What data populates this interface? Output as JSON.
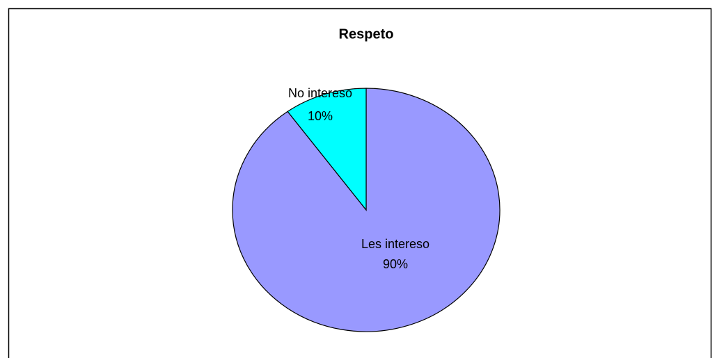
{
  "chart_data": {
    "type": "pie",
    "title": "Respeto",
    "categories": [
      "Les intereso",
      "No intereso"
    ],
    "values": [
      90,
      10
    ],
    "value_labels": [
      "90%",
      "10%"
    ],
    "colors": [
      "#9999ff",
      "#00ffff"
    ]
  }
}
